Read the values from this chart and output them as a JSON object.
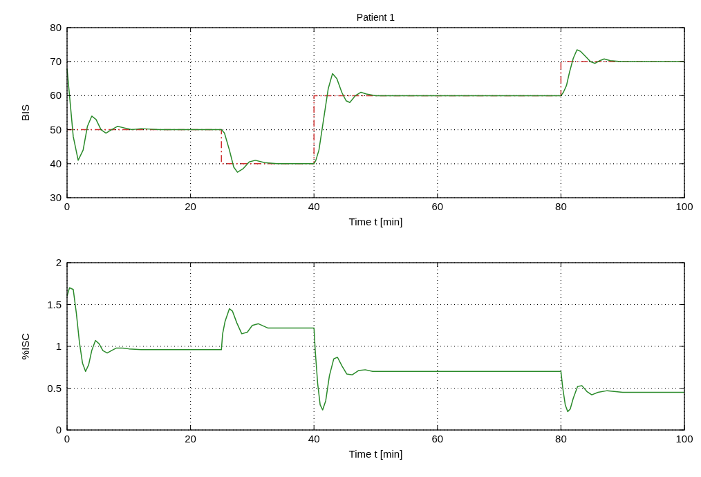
{
  "chart_data": [
    {
      "type": "line",
      "title": "Patient 1",
      "xlabel": "Time t [min]",
      "ylabel": "BIS",
      "xlim": [
        0,
        100
      ],
      "xticks": [
        0,
        20,
        40,
        60,
        80,
        100
      ],
      "ylim": [
        30,
        80
      ],
      "yticks": [
        30,
        40,
        50,
        60,
        70,
        80
      ],
      "grid": true,
      "series": [
        {
          "type": "step",
          "color": "#d03030",
          "line_style": "dashed",
          "x": [
            0,
            25,
            40,
            80,
            100
          ],
          "values": [
            50,
            40,
            60,
            70,
            70
          ]
        },
        {
          "color": "#2a8a2a",
          "line_style": "solid",
          "x": [
            0,
            0.3,
            1,
            1.8,
            2.6,
            3.3,
            4,
            4.7,
            5.5,
            6.3,
            7.2,
            8.2,
            9.3,
            10.5,
            12,
            15,
            20,
            25,
            25.5,
            26.3,
            27,
            27.6,
            28.5,
            29.5,
            30.5,
            32,
            34,
            40,
            40.3,
            40.8,
            41.3,
            41.8,
            42.3,
            43,
            43.7,
            44.5,
            45.2,
            45.8,
            46.7,
            47.6,
            48.5,
            50,
            55,
            80,
            80.4,
            80.9,
            81.4,
            82,
            82.6,
            83.2,
            84,
            84.8,
            85.5,
            86.3,
            87,
            88,
            90,
            100
          ],
          "values": [
            68,
            62,
            48,
            41,
            44,
            51,
            54,
            53,
            50,
            49,
            50,
            51,
            50.5,
            50,
            50.3,
            50,
            50,
            50,
            49,
            44,
            39,
            37.5,
            38.5,
            40.5,
            41,
            40.3,
            40,
            40,
            41,
            44,
            50,
            56,
            62,
            66.5,
            65,
            61,
            58.5,
            58,
            60,
            61,
            60.5,
            60,
            60,
            60,
            61,
            63,
            67,
            71,
            73.5,
            73,
            71.5,
            70,
            69.5,
            70.3,
            70.8,
            70.3,
            70,
            70
          ]
        }
      ]
    },
    {
      "type": "line",
      "xlabel": "Time t [min]",
      "ylabel": "%ISC",
      "xlim": [
        0,
        100
      ],
      "xticks": [
        0,
        20,
        40,
        60,
        80,
        100
      ],
      "ylim": [
        0,
        2
      ],
      "yticks": [
        0,
        0.5,
        1,
        1.5,
        2
      ],
      "grid": true,
      "series": [
        {
          "color": "#2a8a2a",
          "line_style": "solid",
          "x": [
            0,
            0.4,
            1,
            1.5,
            2,
            2.5,
            3,
            3.5,
            4,
            4.6,
            5.2,
            5.8,
            6.5,
            7.2,
            8,
            9,
            10,
            12,
            20,
            25,
            25.2,
            25.6,
            26.3,
            26.8,
            27.5,
            28.3,
            29.2,
            30,
            31,
            32.5,
            34,
            40,
            40.2,
            40.6,
            41,
            41.4,
            41.9,
            42.5,
            43.2,
            43.8,
            44.5,
            45.3,
            46.2,
            47.2,
            48.3,
            49.5,
            52,
            60,
            80,
            80.3,
            80.7,
            81.1,
            81.5,
            82,
            82.7,
            83.4,
            84.2,
            85,
            86,
            87.5,
            90,
            100
          ],
          "values": [
            1.6,
            1.7,
            1.68,
            1.4,
            1.05,
            0.8,
            0.7,
            0.78,
            0.95,
            1.07,
            1.03,
            0.95,
            0.92,
            0.95,
            0.98,
            0.98,
            0.97,
            0.96,
            0.96,
            0.96,
            1.15,
            1.3,
            1.45,
            1.42,
            1.28,
            1.15,
            1.17,
            1.25,
            1.27,
            1.22,
            1.22,
            1.22,
            0.95,
            0.55,
            0.3,
            0.24,
            0.35,
            0.65,
            0.85,
            0.87,
            0.77,
            0.67,
            0.66,
            0.71,
            0.72,
            0.7,
            0.7,
            0.7,
            0.7,
            0.5,
            0.3,
            0.22,
            0.25,
            0.38,
            0.52,
            0.53,
            0.46,
            0.42,
            0.45,
            0.47,
            0.45,
            0.45
          ]
        }
      ]
    }
  ]
}
